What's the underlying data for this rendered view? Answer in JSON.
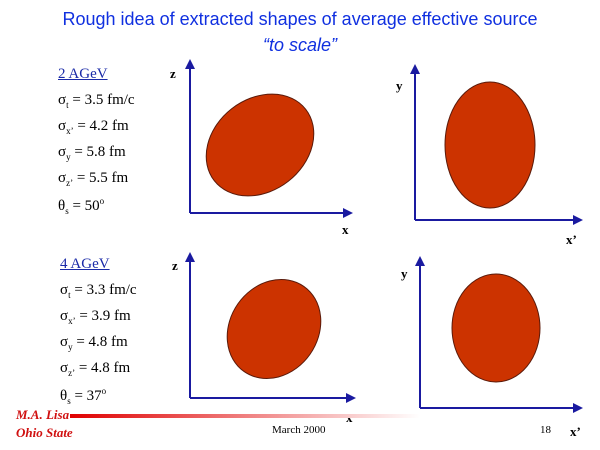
{
  "title": {
    "line1": "Rough idea of extracted shapes of average effective source",
    "line2": "“to scale”"
  },
  "cases": [
    {
      "header": "2 AGeV",
      "params": [
        {
          "sym": "σ",
          "sub": "t",
          "sup": "",
          "value": " = 3.5 fm/c"
        },
        {
          "sym": "σ",
          "sub": "x’",
          "sup": "",
          "value": " = 4.2 fm"
        },
        {
          "sym": "σ",
          "sub": "y",
          "sup": "",
          "value": " = 5.8 fm"
        },
        {
          "sym": "σ",
          "sub": "z’",
          "sup": "",
          "value": " = 5.5 fm"
        },
        {
          "sym": "θ",
          "sub": "s",
          "sup": "o",
          "value": " = 50"
        }
      ],
      "plots": [
        {
          "xlabel": "x",
          "ylabel": "z"
        },
        {
          "xlabel": "x’",
          "ylabel": "y"
        }
      ]
    },
    {
      "header": "4 AGeV",
      "params": [
        {
          "sym": "σ",
          "sub": "t",
          "sup": "",
          "value": " = 3.3 fm/c"
        },
        {
          "sym": "σ",
          "sub": "x’",
          "sup": "",
          "value": " = 3.9 fm"
        },
        {
          "sym": "σ",
          "sub": "y",
          "sup": "",
          "value": " = 4.8 fm"
        },
        {
          "sym": "σ",
          "sub": "z’",
          "sup": "",
          "value": " = 4.8 fm"
        },
        {
          "sym": "θ",
          "sub": "s",
          "sup": "o",
          "value": " = 37"
        }
      ],
      "plots": [
        {
          "xlabel": "x",
          "ylabel": "z"
        },
        {
          "xlabel": "x’",
          "ylabel": "y"
        }
      ]
    }
  ],
  "footer": {
    "author_line1": "M.A. Lisa",
    "author_line2": "Ohio State",
    "date": "March 2000",
    "page": "18"
  },
  "colors": {
    "title": "#1030e0",
    "axis": "#1a1aa0",
    "ellipse_fill": "#cc3300",
    "ellipse_stroke": "#5a1a0a",
    "footer_name": "#d01010"
  }
}
